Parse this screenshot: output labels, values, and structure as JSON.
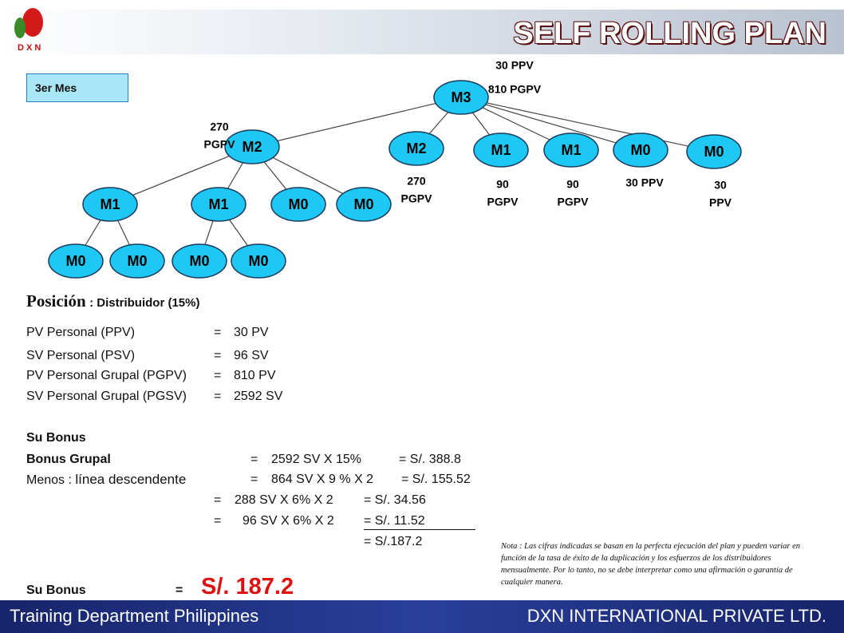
{
  "header": {
    "title": "SELF ROLLING PLAN",
    "logo_text": "D X N"
  },
  "month_label": "3er Mes",
  "nodes": [
    {
      "label": "M3",
      "annotation": [
        "30 PPV",
        "810 PGPV"
      ]
    },
    {
      "label": "M2",
      "annotation": [
        "270",
        "PGPV"
      ]
    },
    {
      "label": "M2",
      "annotation": [
        "270",
        "PGPV"
      ]
    },
    {
      "label": "M1",
      "annotation": [
        "90",
        "PGPV"
      ]
    },
    {
      "label": "M1",
      "annotation": [
        "90",
        "PGPV"
      ]
    },
    {
      "label": "M0",
      "annotation": [
        "30 PPV"
      ]
    },
    {
      "label": "M0",
      "annotation": [
        "30",
        "PPV"
      ]
    },
    {
      "label": "M1"
    },
    {
      "label": "M1"
    },
    {
      "label": "M0"
    },
    {
      "label": "M0"
    },
    {
      "label": "M0"
    },
    {
      "label": "M0"
    },
    {
      "label": "M0"
    },
    {
      "label": "M0"
    }
  ],
  "position": {
    "heading": "Posición",
    "rank": ": Distribuidor  (15%)",
    "rows": [
      [
        "PV Personal (PPV)",
        "=",
        "30 PV"
      ],
      [
        "SV Personal (PSV)",
        "=",
        "96 SV"
      ],
      [
        "PV Personal Grupal (PGPV)",
        "=",
        "810 PV"
      ],
      [
        "SV Personal Grupal (PGSV)",
        "=",
        "2592 SV"
      ]
    ]
  },
  "bonus": {
    "heading": "Su Bonus",
    "group": [
      "Bonus Grupal",
      "=",
      "2592 SV X 15%",
      "= S/. 388.8"
    ],
    "minus": [
      "Menos : ",
      "línea descendente",
      "=",
      "864 SV X 9 % X 2",
      "= S/. 155.52"
    ],
    "line3": [
      "=",
      "288 SV X 6% X 2",
      "= S/. 34.56"
    ],
    "line4": [
      "=",
      "96 SV X 6% X 2",
      "= S/. 11.52"
    ],
    "sum": "= S/.187.2",
    "total": [
      "Su  Bonus",
      "=",
      "S/. 187.2"
    ]
  },
  "note": "Nota : Las cifras indicadas se basan en la perfecta ejecución del plan y pueden variar en función de la tasa de éxito de la duplicación y los esfuerzos de los distribuidores mensualmente. Por lo tanto, no se debe interpretar como una afirmación o garantía de cualquier manera.",
  "footer": {
    "left": "Training Department Philippines",
    "right": "DXN INTERNATIONAL PRIVATE LTD."
  }
}
